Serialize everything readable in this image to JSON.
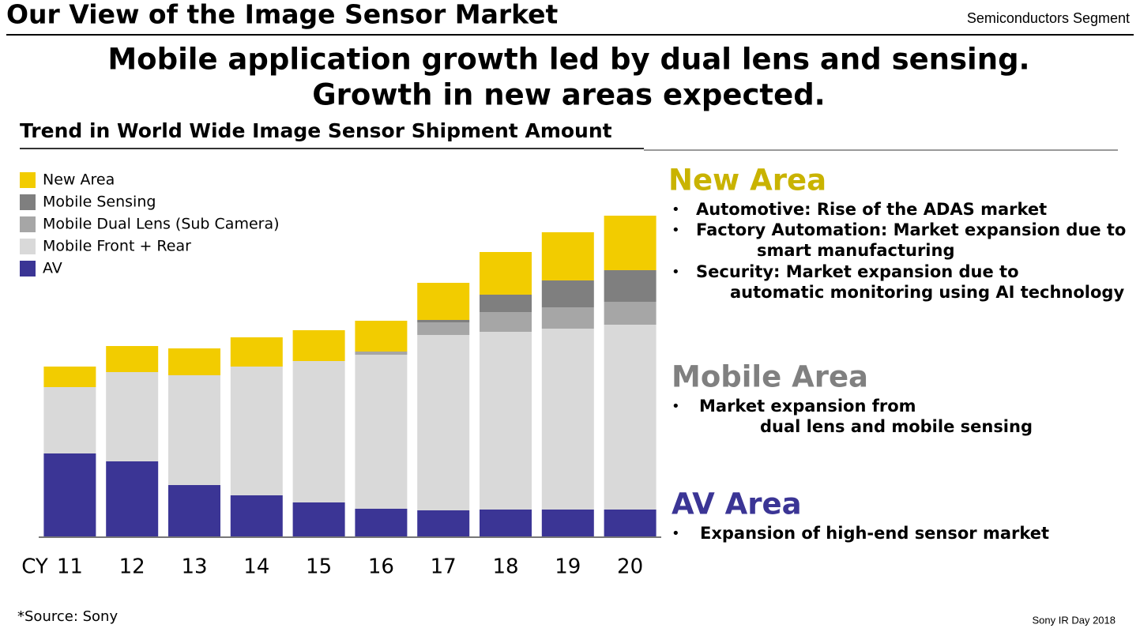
{
  "header": {
    "title": "Our View of the Image Sensor Market",
    "segment": "Semiconductors Segment",
    "headline": [
      "Mobile application growth led by dual lens and sensing.",
      "Growth in new areas expected."
    ]
  },
  "chart_data": {
    "type": "stacked_bar",
    "title": "Trend in World Wide Image Sensor Shipment Amount",
    "x_label": "CY",
    "categories": [
      "11",
      "12",
      "13",
      "14",
      "15",
      "16",
      "17",
      "18",
      "19",
      "20"
    ],
    "ylim": [
      0,
      420
    ],
    "series": [
      {
        "name": "AV",
        "color": "#3b3595",
        "values": [
          106,
          96,
          66,
          53,
          44,
          36,
          34,
          35,
          35,
          35
        ]
      },
      {
        "name": "Mobile Front + Rear",
        "color": "#d9d9d9",
        "values": [
          84,
          113,
          139,
          163,
          179,
          195,
          222,
          225,
          229,
          234
        ]
      },
      {
        "name": "Mobile Dual Lens (Sub Camera)",
        "color": "#a6a6a6",
        "values": [
          0,
          0,
          0,
          0,
          0,
          4,
          16,
          25,
          27,
          29
        ]
      },
      {
        "name": "Mobile Sensing",
        "color": "#7f7f7f",
        "values": [
          0,
          0,
          0,
          0,
          0,
          0,
          3,
          22,
          34,
          40
        ]
      },
      {
        "name": "New Area",
        "color": "#f2cc00",
        "values": [
          26,
          33,
          34,
          37,
          39,
          39,
          47,
          54,
          61,
          69
        ]
      }
    ]
  },
  "panels": [
    {
      "heading": "New Area",
      "color": "#c9b300",
      "bullets": [
        [
          "Automotive: Rise of the ADAS market"
        ],
        [
          "Factory Automation: Market expansion due to",
          "smart manufacturing"
        ],
        [
          "Security: Market expansion due to",
          "automatic monitoring using AI technology"
        ]
      ]
    },
    {
      "heading": "Mobile Area",
      "color": "#808080",
      "bullets": [
        [
          "Market expansion from",
          "dual lens and mobile sensing"
        ]
      ]
    },
    {
      "heading": "AV Area",
      "color": "#3b3595",
      "bullets": [
        [
          "Expansion of high-end sensor market"
        ]
      ]
    }
  ],
  "source": "*Source: Sony",
  "footer": "Sony IR Day 2018"
}
